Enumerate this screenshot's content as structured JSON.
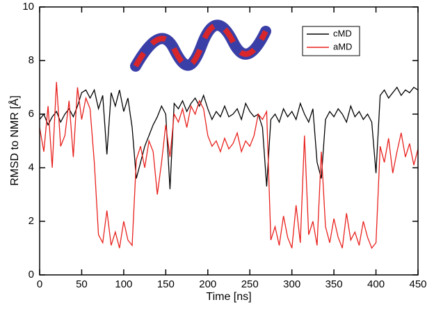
{
  "chart_data": {
    "type": "line",
    "xlabel": "Time [ns]",
    "ylabel": "RMSD to NMR [Å]",
    "x": [
      0,
      5,
      10,
      15,
      20,
      25,
      30,
      35,
      40,
      45,
      50,
      55,
      60,
      65,
      70,
      75,
      80,
      85,
      90,
      95,
      100,
      105,
      110,
      115,
      120,
      125,
      130,
      135,
      140,
      145,
      150,
      155,
      160,
      165,
      170,
      175,
      180,
      185,
      190,
      195,
      200,
      205,
      210,
      215,
      220,
      225,
      230,
      235,
      240,
      245,
      250,
      255,
      260,
      265,
      270,
      275,
      280,
      285,
      290,
      295,
      300,
      305,
      310,
      315,
      320,
      325,
      330,
      335,
      340,
      345,
      350,
      355,
      360,
      365,
      370,
      375,
      380,
      385,
      390,
      395,
      400,
      405,
      410,
      415,
      420,
      425,
      430,
      435,
      440,
      445,
      450
    ],
    "series": [
      {
        "name": "cMD",
        "color": "#000000",
        "values": [
          5.8,
          6.0,
          5.6,
          5.9,
          6.1,
          5.7,
          6.0,
          6.2,
          5.9,
          6.3,
          6.8,
          6.9,
          6.6,
          6.9,
          6.2,
          6.7,
          4.5,
          6.8,
          6.3,
          6.9,
          6.1,
          6.6,
          5.5,
          3.6,
          4.2,
          4.8,
          5.2,
          5.6,
          5.9,
          6.3,
          6.0,
          3.2,
          6.4,
          6.2,
          6.5,
          6.1,
          6.4,
          6.6,
          6.3,
          6.7,
          6.2,
          5.8,
          6.1,
          5.9,
          6.3,
          5.9,
          6.0,
          6.2,
          5.8,
          6.4,
          6.1,
          5.9,
          6.0,
          5.5,
          3.3,
          5.8,
          6.0,
          5.7,
          6.2,
          5.9,
          6.1,
          5.8,
          6.4,
          6.0,
          5.7,
          6.2,
          4.2,
          3.6,
          5.8,
          6.1,
          5.9,
          6.2,
          6.0,
          5.7,
          6.3,
          5.9,
          6.1,
          5.8,
          6.0,
          5.7,
          3.8,
          6.7,
          6.9,
          6.6,
          6.8,
          7.0,
          6.7,
          6.9,
          6.8,
          7.0,
          6.9
        ]
      },
      {
        "name": "aMD",
        "color": "#e8201c",
        "values": [
          5.5,
          4.6,
          6.3,
          4.0,
          7.2,
          4.8,
          5.2,
          6.5,
          4.4,
          7.0,
          5.8,
          6.6,
          6.2,
          4.2,
          1.5,
          1.2,
          2.4,
          1.1,
          1.6,
          1.0,
          2.0,
          1.3,
          1.1,
          4.3,
          4.8,
          4.0,
          5.0,
          4.6,
          3.0,
          4.2,
          5.6,
          4.4,
          6.0,
          5.7,
          6.2,
          5.5,
          6.3,
          6.0,
          6.5,
          6.2,
          5.2,
          4.8,
          5.0,
          4.6,
          5.1,
          4.7,
          4.9,
          5.3,
          4.6,
          5.0,
          4.8,
          5.2,
          6.0,
          5.8,
          6.1,
          1.3,
          1.8,
          1.1,
          2.2,
          1.4,
          1.0,
          2.6,
          1.2,
          5.2,
          1.5,
          2.0,
          1.1,
          4.6,
          1.8,
          1.2,
          2.1,
          1.4,
          1.0,
          2.3,
          1.3,
          1.6,
          1.1,
          2.0,
          1.4,
          1.0,
          1.2,
          4.8,
          4.2,
          5.1,
          3.8,
          4.6,
          5.3,
          4.4,
          4.9,
          4.1,
          4.7
        ]
      }
    ],
    "xlim": [
      0,
      450
    ],
    "ylim": [
      0,
      10
    ],
    "xticks": [
      0,
      50,
      100,
      150,
      200,
      250,
      300,
      350,
      400,
      450
    ],
    "yticks": [
      0,
      2,
      4,
      6,
      8,
      10
    ],
    "legend": "upper right"
  }
}
